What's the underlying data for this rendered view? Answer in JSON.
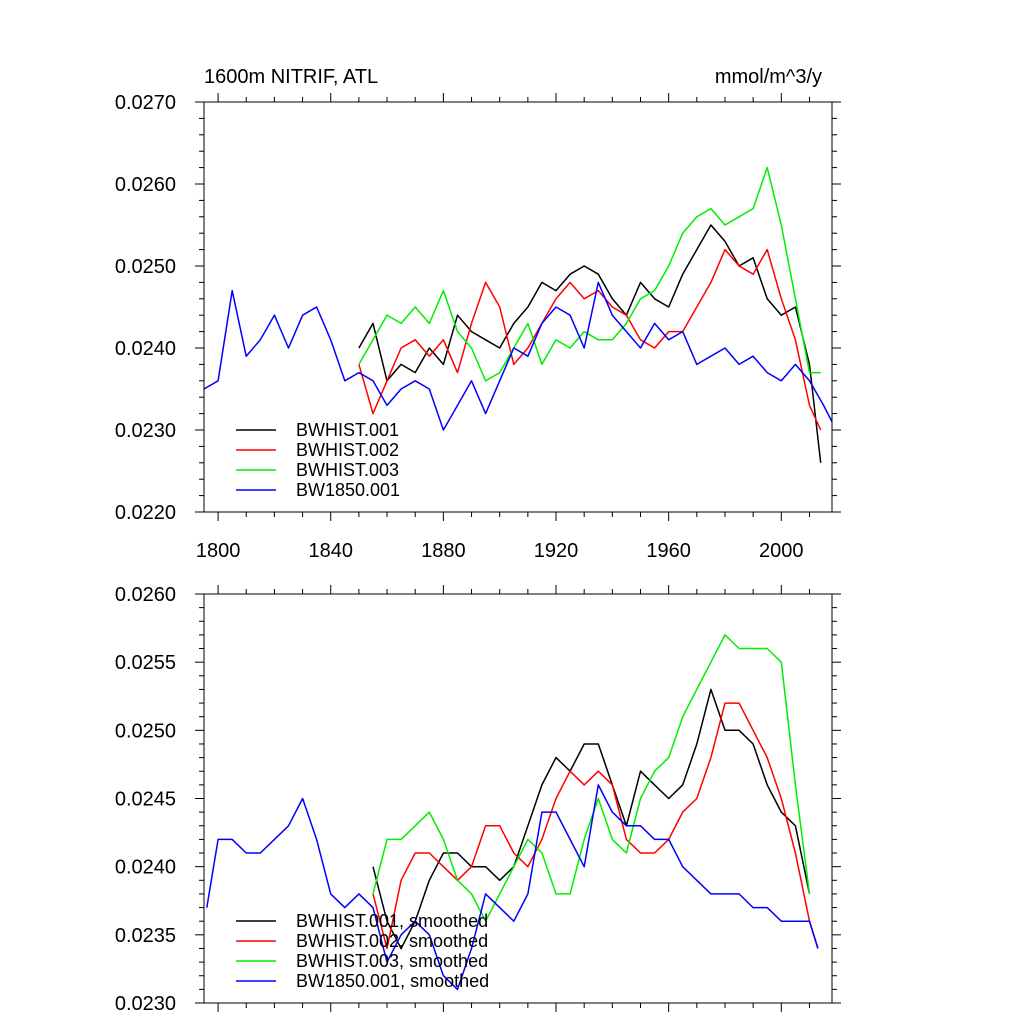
{
  "chart_data": [
    {
      "type": "line",
      "title": "1600m NITRIF, ATL",
      "units": "mmol/m^3/y",
      "xlabel": "",
      "ylabel": "",
      "xlim": [
        1795,
        2018
      ],
      "ylim": [
        0.022,
        0.027
      ],
      "x_ticks": [
        1800,
        1840,
        1880,
        1920,
        1960,
        2000
      ],
      "x_tick_labels": [
        "1800",
        "1840",
        "1880",
        "1920",
        "1960",
        "2000"
      ],
      "y_ticks": [
        0.022,
        0.023,
        0.024,
        0.025,
        0.026,
        0.027
      ],
      "y_tick_labels": [
        "0.0220",
        "0.0230",
        "0.0240",
        "0.0250",
        "0.0260",
        "0.0270"
      ],
      "legend_position": "lower-left",
      "series": [
        {
          "name": "BWHIST.001",
          "color": "#000000",
          "x": [
            1850,
            1855,
            1860,
            1865,
            1870,
            1875,
            1880,
            1885,
            1890,
            1895,
            1900,
            1905,
            1910,
            1915,
            1920,
            1925,
            1930,
            1935,
            1940,
            1945,
            1950,
            1955,
            1960,
            1965,
            1970,
            1975,
            1980,
            1985,
            1990,
            1995,
            2000,
            2005,
            2010,
            2014
          ],
          "y": [
            0.024,
            0.0243,
            0.0236,
            0.0238,
            0.0237,
            0.024,
            0.0238,
            0.0244,
            0.0242,
            0.0241,
            0.024,
            0.0243,
            0.0245,
            0.0248,
            0.0247,
            0.0249,
            0.025,
            0.0249,
            0.0246,
            0.0244,
            0.0248,
            0.0246,
            0.0245,
            0.0249,
            0.0252,
            0.0255,
            0.0253,
            0.025,
            0.0251,
            0.0246,
            0.0244,
            0.0245,
            0.0238,
            0.0226
          ]
        },
        {
          "name": "BWHIST.002",
          "color": "#ff0000",
          "x": [
            1850,
            1855,
            1860,
            1865,
            1870,
            1875,
            1880,
            1885,
            1890,
            1895,
            1900,
            1905,
            1910,
            1915,
            1920,
            1925,
            1930,
            1935,
            1940,
            1945,
            1950,
            1955,
            1960,
            1965,
            1970,
            1975,
            1980,
            1985,
            1990,
            1995,
            2000,
            2005,
            2010,
            2014
          ],
          "y": [
            0.0238,
            0.0232,
            0.0236,
            0.024,
            0.0241,
            0.0239,
            0.0241,
            0.0237,
            0.0243,
            0.0248,
            0.0245,
            0.0238,
            0.024,
            0.0243,
            0.0246,
            0.0248,
            0.0246,
            0.0247,
            0.0245,
            0.0244,
            0.0241,
            0.024,
            0.0242,
            0.0242,
            0.0245,
            0.0248,
            0.0252,
            0.025,
            0.0249,
            0.0252,
            0.0246,
            0.0241,
            0.0233,
            0.023
          ]
        },
        {
          "name": "BWHIST.003",
          "color": "#00ee00",
          "x": [
            1850,
            1855,
            1860,
            1865,
            1870,
            1875,
            1880,
            1885,
            1890,
            1895,
            1900,
            1905,
            1910,
            1915,
            1920,
            1925,
            1930,
            1935,
            1940,
            1945,
            1950,
            1955,
            1960,
            1965,
            1970,
            1975,
            1980,
            1985,
            1990,
            1995,
            2000,
            2005,
            2010,
            2014
          ],
          "y": [
            0.0238,
            0.0241,
            0.0244,
            0.0243,
            0.0245,
            0.0243,
            0.0247,
            0.0242,
            0.024,
            0.0236,
            0.0237,
            0.024,
            0.0243,
            0.0238,
            0.0241,
            0.024,
            0.0242,
            0.0241,
            0.0241,
            0.0243,
            0.0246,
            0.0247,
            0.025,
            0.0254,
            0.0256,
            0.0257,
            0.0255,
            0.0256,
            0.0257,
            0.0262,
            0.0255,
            0.0246,
            0.0237,
            0.0237
          ]
        },
        {
          "name": "BW1850.001",
          "color": "#0000ff",
          "x": [
            1795,
            1800,
            1805,
            1810,
            1815,
            1820,
            1825,
            1830,
            1835,
            1840,
            1845,
            1850,
            1855,
            1860,
            1865,
            1870,
            1875,
            1880,
            1885,
            1890,
            1895,
            1900,
            1905,
            1910,
            1915,
            1920,
            1925,
            1930,
            1935,
            1940,
            1945,
            1950,
            1955,
            1960,
            1965,
            1970,
            1975,
            1980,
            1985,
            1990,
            1995,
            2000,
            2005,
            2010,
            2015,
            2018
          ],
          "y": [
            0.0235,
            0.0236,
            0.0247,
            0.0239,
            0.0241,
            0.0244,
            0.024,
            0.0244,
            0.0245,
            0.0241,
            0.0236,
            0.0237,
            0.0236,
            0.0233,
            0.0235,
            0.0236,
            0.0235,
            0.023,
            0.0233,
            0.0236,
            0.0232,
            0.0236,
            0.024,
            0.0239,
            0.0243,
            0.0245,
            0.0244,
            0.024,
            0.0248,
            0.0244,
            0.0242,
            0.024,
            0.0243,
            0.0241,
            0.0242,
            0.0238,
            0.0239,
            0.024,
            0.0238,
            0.0239,
            0.0237,
            0.0236,
            0.0238,
            0.0236,
            0.0233,
            0.0231
          ]
        }
      ]
    },
    {
      "type": "line",
      "title": "",
      "xlabel": "",
      "ylabel": "",
      "xlim": [
        1795,
        2018
      ],
      "ylim": [
        0.023,
        0.026
      ],
      "x_ticks": [
        1800,
        1840,
        1880,
        1920,
        1960,
        2000
      ],
      "y_ticks": [
        0.023,
        0.0235,
        0.024,
        0.0245,
        0.025,
        0.0255,
        0.026
      ],
      "y_tick_labels": [
        "0.0230",
        "0.0235",
        "0.0240",
        "0.0245",
        "0.0250",
        "0.0255",
        "0.0260"
      ],
      "legend_position": "lower-left",
      "series": [
        {
          "name": "BWHIST.001, smoothed",
          "color": "#000000",
          "x": [
            1855,
            1860,
            1865,
            1870,
            1875,
            1880,
            1885,
            1890,
            1895,
            1900,
            1905,
            1910,
            1915,
            1920,
            1925,
            1930,
            1935,
            1940,
            1945,
            1950,
            1955,
            1960,
            1965,
            1970,
            1975,
            1980,
            1985,
            1990,
            1995,
            2000,
            2005,
            2010
          ],
          "y": [
            0.024,
            0.0236,
            0.0234,
            0.0236,
            0.0239,
            0.0241,
            0.0241,
            0.024,
            0.024,
            0.0239,
            0.024,
            0.0243,
            0.0246,
            0.0248,
            0.0247,
            0.0249,
            0.0249,
            0.0246,
            0.0243,
            0.0247,
            0.0246,
            0.0245,
            0.0246,
            0.0249,
            0.0253,
            0.025,
            0.025,
            0.0249,
            0.0246,
            0.0244,
            0.0243,
            0.0238
          ]
        },
        {
          "name": "BWHIST.002, smoothed",
          "color": "#ff0000",
          "x": [
            1855,
            1860,
            1865,
            1870,
            1875,
            1880,
            1885,
            1890,
            1895,
            1900,
            1905,
            1910,
            1915,
            1920,
            1925,
            1930,
            1935,
            1940,
            1945,
            1950,
            1955,
            1960,
            1965,
            1970,
            1975,
            1980,
            1985,
            1990,
            1995,
            2000,
            2005,
            2010,
            2013
          ],
          "y": [
            0.0238,
            0.0234,
            0.0239,
            0.0241,
            0.0241,
            0.024,
            0.0239,
            0.024,
            0.0243,
            0.0243,
            0.0241,
            0.024,
            0.0242,
            0.0245,
            0.0247,
            0.0246,
            0.0247,
            0.0246,
            0.0242,
            0.0241,
            0.0241,
            0.0242,
            0.0244,
            0.0245,
            0.0248,
            0.0252,
            0.0252,
            0.025,
            0.0248,
            0.0245,
            0.0241,
            0.0236,
            0.0234
          ]
        },
        {
          "name": "BWHIST.003, smoothed",
          "color": "#00ee00",
          "x": [
            1855,
            1860,
            1865,
            1870,
            1875,
            1880,
            1885,
            1890,
            1895,
            1900,
            1905,
            1910,
            1915,
            1920,
            1925,
            1930,
            1935,
            1940,
            1945,
            1950,
            1955,
            1960,
            1965,
            1970,
            1975,
            1980,
            1985,
            1990,
            1995,
            2000,
            2005,
            2010
          ],
          "y": [
            0.0238,
            0.0242,
            0.0242,
            0.0243,
            0.0244,
            0.0242,
            0.0239,
            0.0238,
            0.0236,
            0.0238,
            0.024,
            0.0242,
            0.0241,
            0.0238,
            0.0238,
            0.0242,
            0.0245,
            0.0242,
            0.0241,
            0.0245,
            0.0247,
            0.0248,
            0.0251,
            0.0253,
            0.0255,
            0.0257,
            0.0256,
            0.0256,
            0.0256,
            0.0255,
            0.0246,
            0.0238
          ]
        },
        {
          "name": "BW1850.001, smoothed",
          "color": "#0000ff",
          "x": [
            1796,
            1800,
            1805,
            1810,
            1815,
            1820,
            1825,
            1830,
            1835,
            1840,
            1845,
            1850,
            1855,
            1860,
            1865,
            1870,
            1875,
            1880,
            1885,
            1890,
            1895,
            1900,
            1905,
            1910,
            1915,
            1920,
            1925,
            1930,
            1935,
            1940,
            1945,
            1950,
            1955,
            1960,
            1965,
            1970,
            1975,
            1980,
            1985,
            1990,
            1995,
            2000,
            2005,
            2010,
            2013
          ],
          "y": [
            0.0237,
            0.0242,
            0.0242,
            0.0241,
            0.0241,
            0.0242,
            0.0243,
            0.0245,
            0.0242,
            0.0238,
            0.0237,
            0.0238,
            0.0237,
            0.0233,
            0.0235,
            0.0236,
            0.0235,
            0.0232,
            0.0231,
            0.0234,
            0.0238,
            0.0237,
            0.0236,
            0.0238,
            0.0244,
            0.0244,
            0.0242,
            0.024,
            0.0246,
            0.0244,
            0.0243,
            0.0243,
            0.0242,
            0.0242,
            0.024,
            0.0239,
            0.0238,
            0.0238,
            0.0238,
            0.0237,
            0.0237,
            0.0236,
            0.0236,
            0.0236,
            0.0234
          ]
        }
      ]
    }
  ]
}
